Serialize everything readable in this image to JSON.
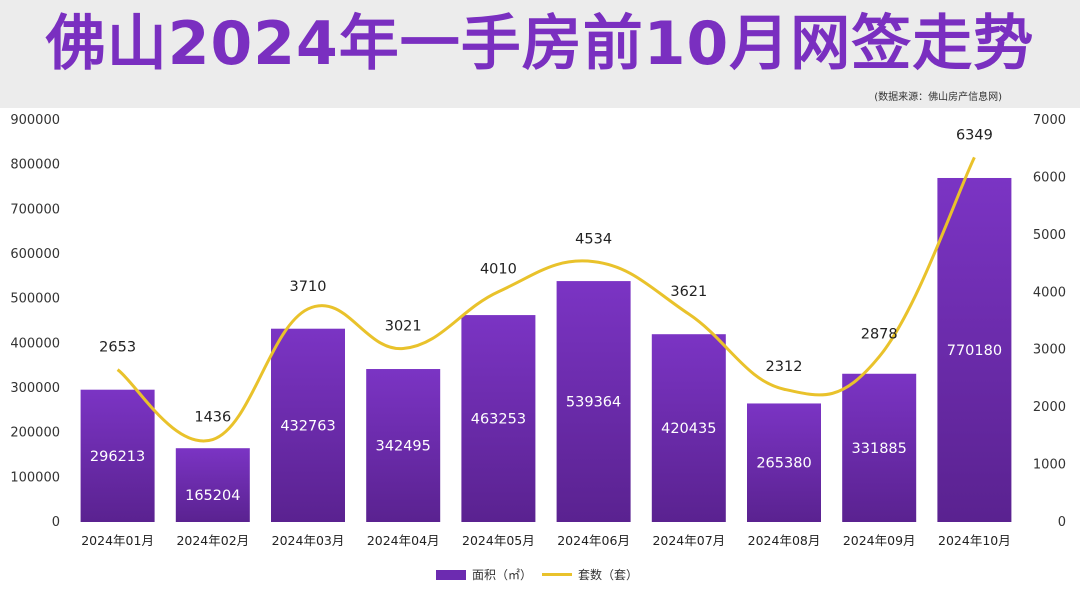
{
  "page": {
    "title": "佛山2024年一手房前10月网签走势",
    "source": "(数据来源：佛山房产信息网)"
  },
  "legend": {
    "area_label": "面积（㎡）",
    "count_label": "套数（套）"
  },
  "chart_data": {
    "type": "bar",
    "title": "佛山2024年一手房前10月网签走势",
    "categories": [
      "2024年01月",
      "2024年02月",
      "2024年03月",
      "2024年04月",
      "2024年05月",
      "2024年06月",
      "2024年07月",
      "2024年08月",
      "2024年09月",
      "2024年10月"
    ],
    "series": [
      {
        "name": "面积（㎡）",
        "type": "bar",
        "axis": "left",
        "values": [
          296213,
          165204,
          432763,
          342495,
          463253,
          539364,
          420435,
          265380,
          331885,
          770180
        ]
      },
      {
        "name": "套数（套）",
        "type": "line",
        "axis": "right",
        "smooth": true,
        "values": [
          2653,
          1436,
          3710,
          3021,
          4010,
          4534,
          3621,
          2312,
          2878,
          6349
        ]
      }
    ],
    "ylim_left": [
      0,
      900000
    ],
    "ylim_right": [
      0,
      7000
    ],
    "yticks_left": [
      0,
      100000,
      200000,
      300000,
      400000,
      500000,
      600000,
      700000,
      800000,
      900000
    ],
    "yticks_right": [
      0,
      1000,
      2000,
      3000,
      4000,
      5000,
      6000,
      7000
    ],
    "grid": false,
    "legend_position": "bottom",
    "colors": {
      "bar_top": "#7b34c4",
      "bar_bottom": "#5a2290",
      "line": "#e9c22b"
    }
  }
}
